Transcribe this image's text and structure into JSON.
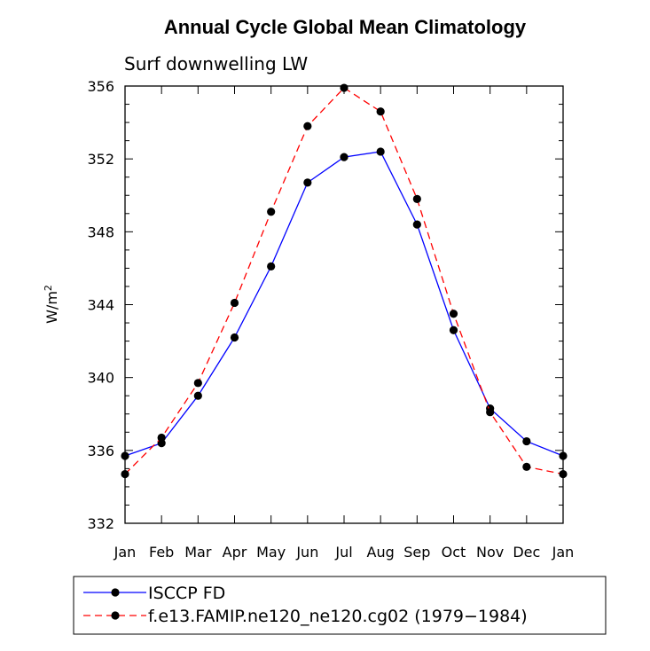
{
  "chart_data": {
    "type": "line",
    "title": "Annual Cycle Global Mean Climatology",
    "subtitle": "Surf downwelling LW",
    "ylabel": "W/m",
    "ylabel_sup": "2",
    "xlabel": "",
    "categories": [
      "Jan",
      "Feb",
      "Mar",
      "Apr",
      "May",
      "Jun",
      "Jul",
      "Aug",
      "Sep",
      "Oct",
      "Nov",
      "Dec",
      "Jan"
    ],
    "ylim": [
      332,
      356
    ],
    "yticks": [
      "332",
      "336",
      "340",
      "344",
      "348",
      "352",
      "356"
    ],
    "grid": false,
    "legend_position": "bottom-left",
    "series": [
      {
        "name": "ISCCP FD",
        "color": "#0000ff",
        "dash": "solid",
        "values": [
          335.7,
          336.4,
          339.0,
          342.2,
          346.1,
          350.7,
          352.1,
          352.4,
          348.4,
          342.6,
          338.3,
          336.5,
          335.7
        ]
      },
      {
        "name": "f.e13.FAMIP.ne120_ne120.cg02 (1979−1984)",
        "color": "#ff0000",
        "dash": "dashed",
        "values": [
          334.7,
          336.7,
          339.7,
          344.1,
          349.1,
          353.8,
          355.9,
          354.6,
          349.8,
          343.5,
          338.1,
          335.1,
          334.7
        ]
      }
    ]
  }
}
